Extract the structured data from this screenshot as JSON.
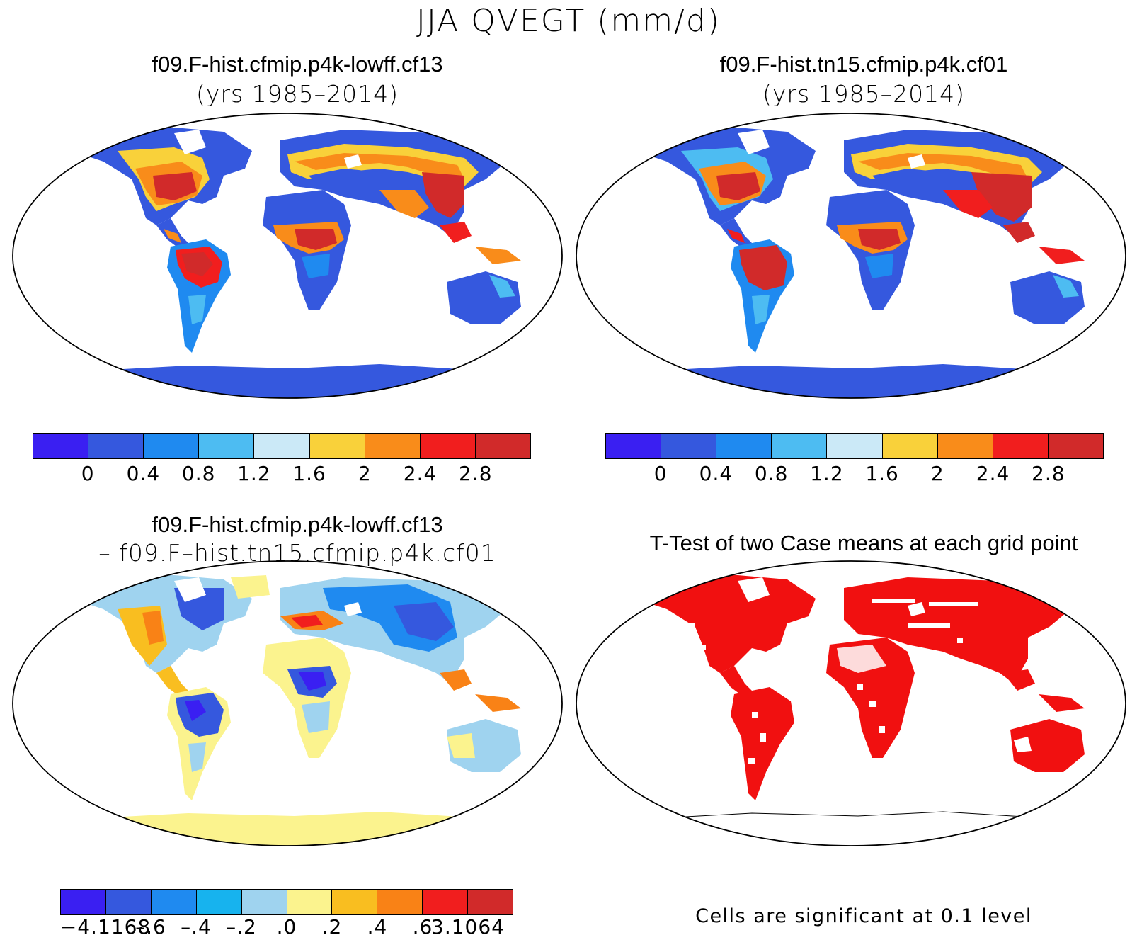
{
  "figure": {
    "title": "JJA QVEGT (mm/d)"
  },
  "panels": {
    "top_left": {
      "case_name": "f09.F-hist.cfmip.p4k-lowff.cf13",
      "years": "(yrs 1985–2014)"
    },
    "top_right": {
      "case_name": "f09.F-hist.tn15.cfmip.p4k.cf01",
      "years": "(yrs 1985–2014)"
    },
    "bottom_left": {
      "case_name": "f09.F-hist.cfmip.p4k-lowff.cf13",
      "minus_case": "– f09.F–hist.tn15.cfmip.p4k.cf01"
    },
    "bottom_right": {
      "title": "T-Test of two Case means at each grid point",
      "note": "Cells are significant at 0.1 level"
    }
  },
  "colorbars": {
    "mean_field": {
      "colors": [
        "#3a1ff2",
        "#3558de",
        "#1f8af0",
        "#4dbcf2",
        "#cbe9f7",
        "#f9d13a",
        "#f98c1a",
        "#f11e1e",
        "#d12a2a"
      ],
      "labels": [
        "0",
        "0.4",
        "0.8",
        "1.2",
        "1.6",
        "2",
        "2.4",
        "2.8"
      ]
    },
    "difference": {
      "colors": [
        "#3a1ff2",
        "#3558de",
        "#1f8af0",
        "#17b3ee",
        "#9fd3ef",
        "#fbf38e",
        "#f9be20",
        "#f98216",
        "#f11e1e",
        "#d12a2a"
      ],
      "labels": [
        "−4.1168",
        "–.6",
        "–.4",
        "–.2",
        ".0",
        ".2",
        ".4",
        ".6",
        "3.1064"
      ]
    },
    "significance_color": "#f11010"
  }
}
